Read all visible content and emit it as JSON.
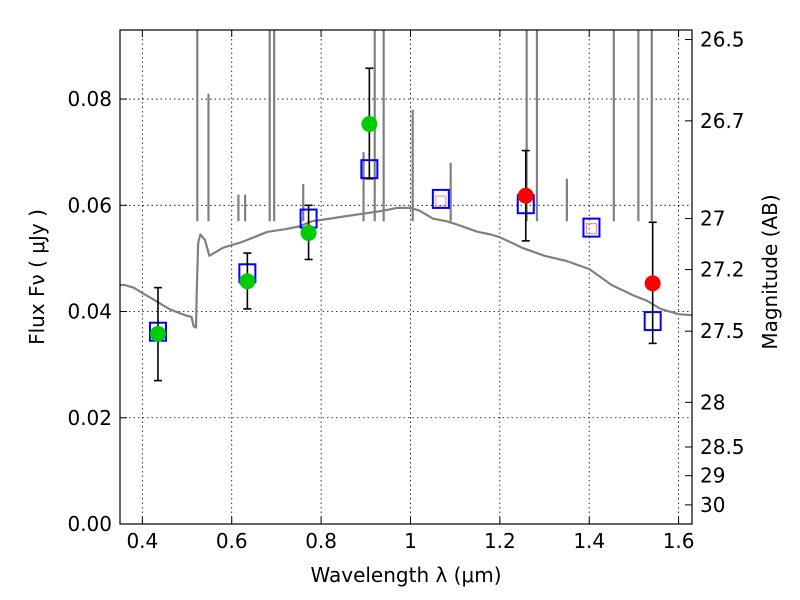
{
  "chart_data": {
    "type": "scatter",
    "xlabel": "Wavelength  λ (μm)",
    "ylabel": "Flux  Fν  ( μJy )",
    "y2label": "Magnitude (AB)",
    "xlim": [
      0.35,
      1.63
    ],
    "ylim": [
      0.0,
      0.093
    ],
    "grid": true,
    "x_ticks": [
      0.4,
      0.6,
      0.8,
      1.0,
      1.2,
      1.4,
      1.6
    ],
    "x_tick_labels": [
      "0.4",
      "0.6",
      "0.8",
      "1",
      "1.2",
      "1.4",
      "1.6"
    ],
    "y_ticks": [
      0.0,
      0.02,
      0.04,
      0.06,
      0.08
    ],
    "y_tick_labels": [
      "0.00",
      "0.02",
      "0.04",
      "0.06",
      "0.08"
    ],
    "y2_ticks": [
      {
        "label": "26.5",
        "flux": 0.0912
      },
      {
        "label": "26.7",
        "flux": 0.0759
      },
      {
        "label": "27",
        "flux": 0.0575
      },
      {
        "label": "27.2",
        "flux": 0.0479
      },
      {
        "label": "27.5",
        "flux": 0.0363
      },
      {
        "label": "28",
        "flux": 0.0229
      },
      {
        "label": "28.5",
        "flux": 0.0145
      },
      {
        "label": "29",
        "flux": 0.0091
      },
      {
        "label": "30",
        "flux": 0.0036
      }
    ],
    "series": [
      {
        "kind": "line",
        "color": "#808080",
        "x": [
          0.35,
          0.36,
          0.38,
          0.4,
          0.42,
          0.44,
          0.46,
          0.48,
          0.5,
          0.51,
          0.515,
          0.52,
          0.522,
          0.525,
          0.53,
          0.54,
          0.55,
          0.58,
          0.6,
          0.62,
          0.65,
          0.68,
          0.72,
          0.75,
          0.78,
          0.82,
          0.86,
          0.9,
          0.94,
          0.97,
          1.0,
          1.02,
          1.05,
          1.08,
          1.1,
          1.15,
          1.18,
          1.2,
          1.25,
          1.3,
          1.35,
          1.4,
          1.45,
          1.5,
          1.53,
          1.56,
          1.6,
          1.63
        ],
        "y": [
          0.045,
          0.045,
          0.0445,
          0.0435,
          0.0425,
          0.0415,
          0.0405,
          0.0398,
          0.0392,
          0.039,
          0.0372,
          0.037,
          0.045,
          0.053,
          0.0545,
          0.0535,
          0.0505,
          0.052,
          0.0525,
          0.053,
          0.054,
          0.055,
          0.0555,
          0.056,
          0.057,
          0.0575,
          0.058,
          0.0585,
          0.059,
          0.0595,
          0.0595,
          0.059,
          0.0575,
          0.057,
          0.0565,
          0.055,
          0.0545,
          0.054,
          0.052,
          0.0505,
          0.0495,
          0.048,
          0.045,
          0.043,
          0.042,
          0.0405,
          0.0395,
          0.0393
        ]
      },
      {
        "kind": "emission_lines",
        "color": "#808080",
        "x": [
          0.523,
          0.548,
          0.615,
          0.63,
          0.685,
          0.695,
          0.76,
          0.895,
          0.92,
          0.94,
          1.005,
          1.09,
          1.26,
          1.283,
          1.35,
          1.455,
          1.51,
          1.54
        ],
        "y": [
          0.094,
          0.081,
          0.062,
          0.062,
          0.094,
          0.094,
          0.064,
          0.07,
          0.094,
          0.094,
          0.078,
          0.068,
          0.094,
          0.094,
          0.065,
          0.094,
          0.094,
          0.094
        ]
      },
      {
        "kind": "model_boxes",
        "color": "#0000ff",
        "x": [
          0.435,
          0.635,
          0.772,
          0.908,
          1.068,
          1.258,
          1.405,
          1.542
        ],
        "y": [
          0.0362,
          0.0472,
          0.0575,
          0.0668,
          0.0612,
          0.0602,
          0.0558,
          0.0382
        ]
      },
      {
        "kind": "inner_boxes",
        "color": "#ff7f7f",
        "x": [
          1.068,
          1.405
        ],
        "y": [
          0.0608,
          0.0556
        ]
      },
      {
        "kind": "points_with_errors",
        "color": "#00cc00",
        "x": [
          0.435,
          0.635,
          0.772,
          0.908
        ],
        "y": [
          0.0358,
          0.0457,
          0.0548,
          0.0753
        ],
        "yerr_low": [
          0.027,
          0.0405,
          0.0498,
          0.065
        ],
        "yerr_high": [
          0.0445,
          0.051,
          0.06,
          0.0858
        ]
      },
      {
        "kind": "points_with_errors",
        "color": "#ff0000",
        "x": [
          1.258,
          1.542
        ],
        "y": [
          0.0618,
          0.0453
        ],
        "yerr_low": [
          0.0533,
          0.034
        ],
        "yerr_high": [
          0.0703,
          0.0568
        ]
      }
    ]
  }
}
